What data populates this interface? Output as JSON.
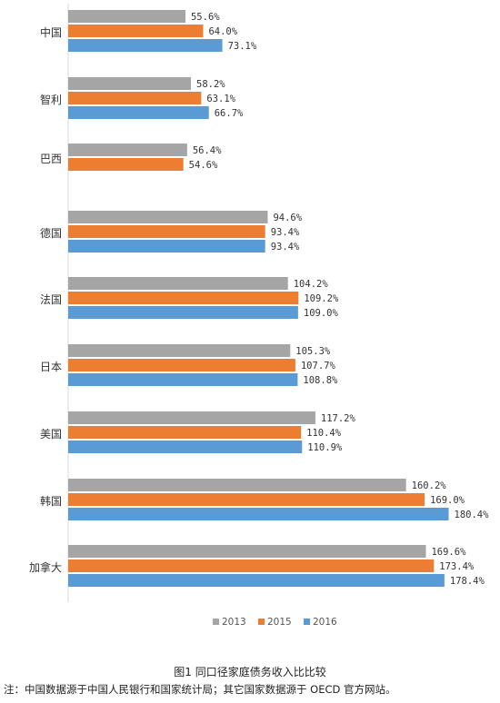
{
  "chart_data": {
    "type": "bar",
    "orientation": "horizontal",
    "categories": [
      "中国",
      "智利",
      "巴西",
      "德国",
      "法国",
      "日本",
      "美国",
      "韩国",
      "加拿大"
    ],
    "series": [
      {
        "name": "2013",
        "values": [
          55.6,
          58.2,
          56.4,
          94.6,
          104.2,
          105.3,
          117.2,
          160.2,
          169.6
        ],
        "color": "#a5a5a5"
      },
      {
        "name": "2015",
        "values": [
          64.0,
          63.1,
          54.6,
          93.4,
          109.2,
          107.7,
          110.4,
          169.0,
          173.4
        ],
        "color": "#ed7d31"
      },
      {
        "name": "2016",
        "values": [
          73.1,
          66.7,
          null,
          93.4,
          109.0,
          108.8,
          110.9,
          180.4,
          178.4
        ],
        "color": "#5b9bd5"
      }
    ],
    "data_labels": [
      [
        "55.6%",
        "64.0%",
        "73.1%"
      ],
      [
        "58.2%",
        "63.1%",
        "66.7%"
      ],
      [
        "56.4%",
        "54.6%",
        null
      ],
      [
        "94.6%",
        "93.4%",
        "93.4%"
      ],
      [
        "104.2%",
        "109.2%",
        "109.0%"
      ],
      [
        "105.3%",
        "107.7%",
        "108.8%"
      ],
      [
        "117.2%",
        "110.4%",
        "110.9%"
      ],
      [
        "160.2%",
        "169.0%",
        "180.4%"
      ],
      [
        "169.6%",
        "173.4%",
        "178.4%"
      ]
    ],
    "xlim": [
      0,
      200
    ],
    "grid": false,
    "legend_position": "bottom"
  },
  "caption": "图1 同口径家庭债务收入比比较",
  "note": "注：中国数据源于中国人民银行和国家统计局；其它国家数据源于 OECD 官方网站。"
}
